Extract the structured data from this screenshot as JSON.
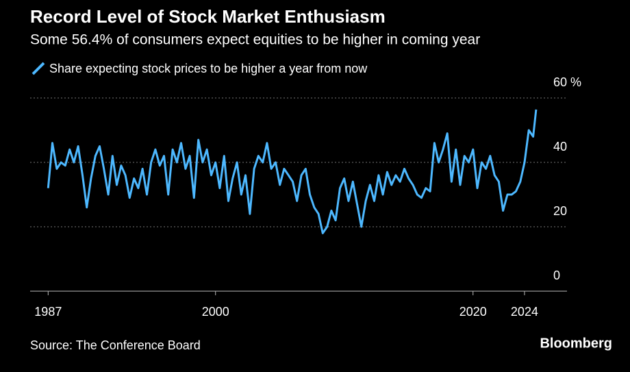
{
  "chart_data": {
    "type": "line",
    "title": "Record Level of Stock Market Enthusiasm",
    "subtitle": "Some 56.4% of consumers expect equities to be higher in coming year",
    "source": "Source: The Conference Board",
    "brand": "Bloomberg",
    "x": [
      1987.0,
      1987.33,
      1987.67,
      1988.0,
      1988.33,
      1988.67,
      1989.0,
      1989.33,
      1989.67,
      1990.0,
      1990.33,
      1990.67,
      1991.0,
      1991.33,
      1991.67,
      1992.0,
      1992.33,
      1992.67,
      1993.0,
      1993.33,
      1993.67,
      1994.0,
      1994.33,
      1994.67,
      1995.0,
      1995.33,
      1995.67,
      1996.0,
      1996.33,
      1996.67,
      1997.0,
      1997.33,
      1997.67,
      1998.0,
      1998.33,
      1998.67,
      1999.0,
      1999.33,
      1999.67,
      2000.0,
      2000.33,
      2000.67,
      2001.0,
      2001.33,
      2001.67,
      2002.0,
      2002.33,
      2002.67,
      2003.0,
      2003.33,
      2003.67,
      2004.0,
      2004.33,
      2004.67,
      2005.0,
      2005.33,
      2005.67,
      2006.0,
      2006.33,
      2006.67,
      2007.0,
      2007.33,
      2007.67,
      2008.0,
      2008.33,
      2008.67,
      2009.0,
      2009.33,
      2009.67,
      2010.0,
      2010.33,
      2010.67,
      2011.0,
      2011.33,
      2011.67,
      2012.0,
      2012.33,
      2012.67,
      2013.0,
      2013.33,
      2013.67,
      2014.0,
      2014.33,
      2014.67,
      2015.0,
      2015.33,
      2015.67,
      2016.0,
      2016.33,
      2016.67,
      2017.0,
      2017.33,
      2017.67,
      2018.0,
      2018.33,
      2018.67,
      2019.0,
      2019.33,
      2019.67,
      2020.0,
      2020.33,
      2020.67,
      2021.0,
      2021.33,
      2021.67,
      2022.0,
      2022.33,
      2022.67,
      2023.0,
      2023.33,
      2023.67,
      2024.0,
      2024.33,
      2024.67,
      2024.9
    ],
    "series": [
      {
        "name": "Share expecting stock prices to be higher a year from now",
        "color": "#4db8ff",
        "values": [
          32,
          46,
          38,
          40,
          39,
          44,
          40,
          45,
          36,
          26,
          35,
          42,
          45,
          38,
          30,
          42,
          33,
          39,
          36,
          29,
          35,
          32,
          38,
          30,
          40,
          44,
          39,
          42,
          30,
          44,
          40,
          46,
          38,
          42,
          29,
          47,
          40,
          44,
          36,
          40,
          32,
          42,
          28,
          35,
          40,
          30,
          36,
          24,
          38,
          42,
          40,
          46,
          38,
          40,
          33,
          38,
          36,
          34,
          28,
          36,
          38,
          30,
          26,
          24,
          18,
          20,
          25,
          22,
          32,
          35,
          28,
          34,
          27,
          20,
          28,
          33,
          28,
          36,
          30,
          37,
          33,
          36,
          34,
          38,
          35,
          33,
          30,
          29,
          32,
          31,
          46,
          40,
          44,
          49,
          34,
          44,
          33,
          42,
          40,
          44,
          32,
          40,
          38,
          42,
          36,
          34,
          25,
          30,
          30,
          31,
          34,
          40,
          50,
          48,
          56.4
        ]
      }
    ],
    "xlim": [
      1985.6,
      2027.3
    ],
    "xticks": [
      1987,
      2000,
      2020,
      2024
    ],
    "ylim": [
      0,
      60
    ],
    "yticks": [
      0,
      20,
      40,
      {
        "value": 60,
        "label": "60 %"
      }
    ],
    "grid": true
  }
}
